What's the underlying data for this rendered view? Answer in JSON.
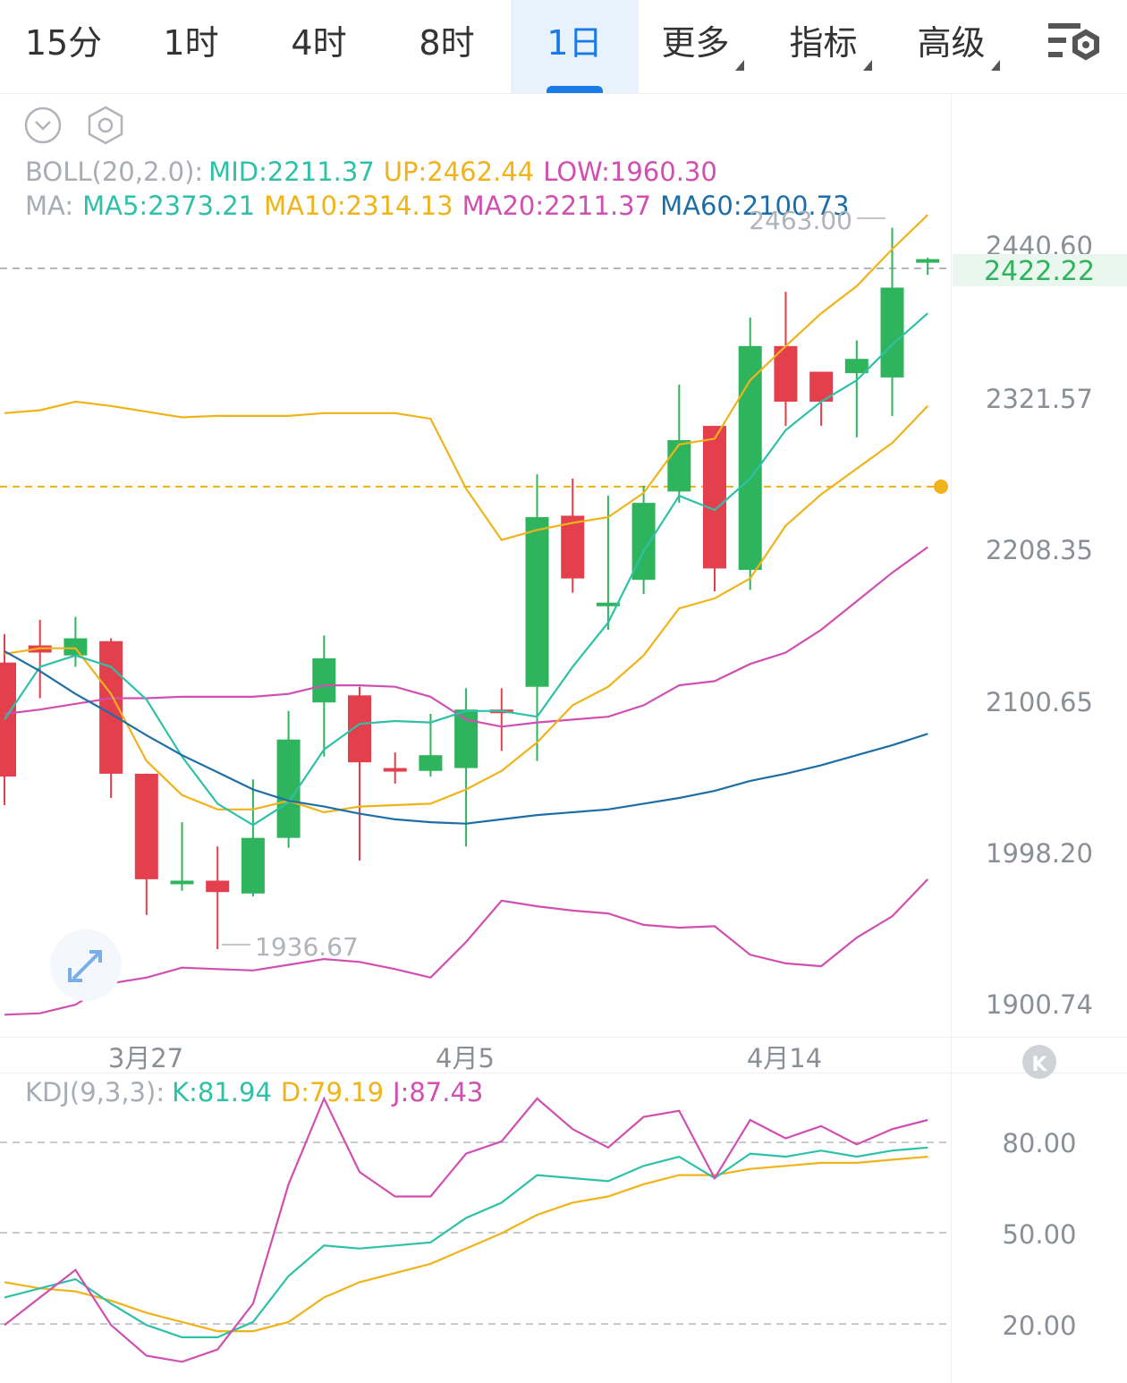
{
  "tabs": [
    {
      "label": "15分",
      "active": false,
      "dropdown": false
    },
    {
      "label": "1时",
      "active": false,
      "dropdown": false
    },
    {
      "label": "4时",
      "active": false,
      "dropdown": false
    },
    {
      "label": "8时",
      "active": false,
      "dropdown": false
    },
    {
      "label": "1日",
      "active": true,
      "dropdown": false
    },
    {
      "label": "更多",
      "active": false,
      "dropdown": true
    },
    {
      "label": "指标",
      "active": false,
      "dropdown": true
    },
    {
      "label": "高级",
      "active": false,
      "dropdown": true
    }
  ],
  "icons": {
    "collapse": "chevron-down-circle-icon",
    "settings_small": "hexagon-gear-icon",
    "settings": "settings-sliders-icon",
    "expand": "expand-arrows-icon",
    "kline": "k-badge-icon"
  },
  "colors": {
    "up": "#e43f4c",
    "down": "#2eb45c",
    "ma5": "#2ec1a8",
    "ma10": "#f0b31a",
    "ma20": "#d04fb0",
    "ma60": "#1d6ea6",
    "accent": "#1a7be6"
  },
  "legend": {
    "boll": {
      "prefix": "BOLL(20,2.0):",
      "mid": "MID:2211.37",
      "up": "UP:2462.44",
      "low": "LOW:1960.30"
    },
    "ma": {
      "prefix": "MA:",
      "ma5": "MA5:2373.21",
      "ma10": "MA10:2314.13",
      "ma20": "MA20:2211.37",
      "ma60": "MA60:2100.73"
    },
    "kdj": {
      "prefix": "KDJ(9,3,3):",
      "k": "K:81.94",
      "d": "D:79.19",
      "j": "J:87.43"
    }
  },
  "price_axis": [
    "2440.60",
    "2321.57",
    "2208.35",
    "2100.65",
    "1998.20",
    "1900.74"
  ],
  "current_price": "2422.22",
  "high_label": "2463.00",
  "low_label": "1936.67",
  "date_labels": [
    "3月27",
    "4月5",
    "4月14"
  ],
  "kdj_axis": [
    "80.00",
    "50.00",
    "20.00"
  ],
  "chart_data": {
    "type": "candlestick",
    "ylim": [
      1885,
      2478
    ],
    "candles": [
      [
        2140,
        2060,
        2160,
        2040
      ],
      [
        2152,
        2147,
        2170,
        2115
      ],
      [
        2145,
        2157,
        2172,
        2137
      ],
      [
        2155,
        2062,
        2157,
        2045
      ],
      [
        2062,
        1988,
        2062,
        1963
      ],
      [
        1987,
        1987,
        2028,
        1980
      ],
      [
        1987,
        1979,
        2011,
        1939
      ],
      [
        1978,
        2017,
        2058,
        1976
      ],
      [
        2017,
        2086,
        2106,
        2010
      ],
      [
        2112,
        2143,
        2159,
        2074
      ],
      [
        2117,
        2070,
        2123,
        2001
      ],
      [
        2066,
        2065,
        2077,
        2055
      ],
      [
        2064,
        2075,
        2104,
        2060
      ],
      [
        2066,
        2107,
        2122,
        2011
      ],
      [
        2107,
        2107,
        2122,
        2078
      ],
      [
        2123,
        2242,
        2272,
        2071
      ],
      [
        2243,
        2199,
        2269,
        2189
      ],
      [
        2182,
        2182,
        2257,
        2163
      ],
      [
        2198,
        2252,
        2264,
        2188
      ],
      [
        2260,
        2296,
        2335,
        2252
      ],
      [
        2306,
        2206,
        2306,
        2190
      ],
      [
        2205,
        2362,
        2382,
        2191
      ],
      [
        2362,
        2323,
        2400,
        2306
      ],
      [
        2344,
        2323,
        2344,
        2306
      ],
      [
        2343,
        2353,
        2366,
        2298
      ],
      [
        2340,
        2403,
        2445,
        2313
      ],
      [
        2421,
        2423,
        2424,
        2412
      ]
    ],
    "boll_up": [
      2315,
      2317,
      2323,
      2320,
      2316,
      2312,
      2313,
      2313,
      2313,
      2315,
      2315,
      2315,
      2311,
      2262,
      2226,
      2233,
      2238,
      2242,
      2259,
      2293,
      2297,
      2338,
      2362,
      2385,
      2404,
      2430,
      2454
    ],
    "boll_mid": [
      2104,
      2107,
      2111,
      2115,
      2115,
      2116,
      2116,
      2116,
      2118,
      2124,
      2124,
      2123,
      2116,
      2100,
      2095,
      2098,
      2100,
      2102,
      2110,
      2124,
      2127,
      2139,
      2147,
      2163,
      2183,
      2203,
      2221
    ],
    "boll_low": [
      1893,
      1894,
      1900,
      1915,
      1919,
      1926,
      1925,
      1924,
      1928,
      1932,
      1930,
      1925,
      1919,
      1944,
      1973,
      1969,
      1966,
      1964,
      1956,
      1954,
      1955,
      1935,
      1929,
      1927,
      1947,
      1962,
      1988
    ],
    "ma5": [
      2100,
      2137,
      2145,
      2137,
      2114,
      2074,
      2041,
      2026,
      2042,
      2079,
      2097,
      2099,
      2098,
      2106,
      2106,
      2102,
      2137,
      2168,
      2218,
      2257,
      2247,
      2269,
      2303,
      2323,
      2338,
      2363,
      2385
    ],
    "ma10": [
      2146,
      2150,
      2150,
      2118,
      2071,
      2047,
      2037,
      2037,
      2043,
      2035,
      2039,
      2040,
      2041,
      2051,
      2064,
      2084,
      2110,
      2123,
      2145,
      2178,
      2185,
      2199,
      2236,
      2258,
      2276,
      2294,
      2320
    ],
    "ma60": [
      2148,
      2134,
      2118,
      2104,
      2089,
      2075,
      2063,
      2051,
      2043,
      2039,
      2034,
      2030,
      2028,
      2027,
      2030,
      2033,
      2035,
      2037,
      2041,
      2045,
      2050,
      2057,
      2062,
      2068,
      2075,
      2082,
      2090
    ],
    "kdj_ylim": [
      8,
      98
    ],
    "k": [
      33,
      36,
      39,
      31,
      24,
      20,
      20,
      25,
      40,
      50,
      49,
      50,
      51,
      59,
      64,
      73,
      72,
      71,
      76,
      79,
      72,
      80,
      79,
      81,
      79,
      81,
      82
    ],
    "d": [
      38,
      36,
      35,
      32,
      28,
      25,
      22,
      22,
      25,
      33,
      38,
      41,
      44,
      49,
      54,
      60,
      64,
      66,
      70,
      73,
      73,
      75,
      76,
      77,
      77,
      78,
      79
    ],
    "j": [
      24,
      33,
      42,
      24,
      14,
      12,
      16,
      31,
      70,
      98,
      74,
      66,
      66,
      80,
      84,
      98,
      88,
      82,
      92,
      94,
      72,
      91,
      85,
      89,
      83,
      88,
      91
    ]
  }
}
